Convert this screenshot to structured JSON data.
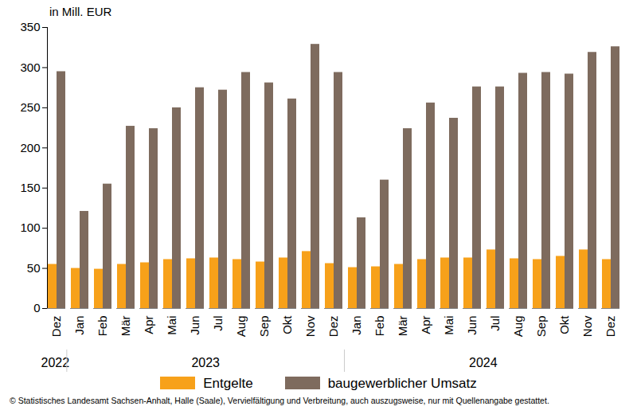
{
  "chart_data": {
    "type": "bar",
    "y_label": "in Mill. EUR",
    "categories": [
      "Dez",
      "Jan",
      "Feb",
      "Mär",
      "Apr",
      "Mai",
      "Jun",
      "Jul",
      "Aug",
      "Sep",
      "Okt",
      "Nov",
      "Dez",
      "Jan",
      "Feb",
      "Mär",
      "Apr",
      "Mai",
      "Jun",
      "Jul",
      "Aug",
      "Sep",
      "Okt",
      "Nov",
      "Dez"
    ],
    "groups": [
      {
        "label": "2022",
        "count": 1
      },
      {
        "label": "2023",
        "count": 12
      },
      {
        "label": "2024",
        "count": 12
      }
    ],
    "series": [
      {
        "name": "Entgelte",
        "color": "#f7a11a",
        "values": [
          55,
          50,
          49,
          55,
          57,
          61,
          62,
          63,
          61,
          58,
          63,
          71,
          56,
          51,
          52,
          55,
          61,
          63,
          63,
          73,
          62,
          61,
          65,
          73,
          61
        ]
      },
      {
        "name": "baugewerblicher Umsatz",
        "color": "#7e6b5e",
        "values": [
          295,
          121,
          155,
          227,
          224,
          250,
          275,
          272,
          294,
          281,
          261,
          329,
          294,
          113,
          160,
          224,
          256,
          237,
          276,
          276,
          293,
          294,
          292,
          319,
          326
        ]
      }
    ],
    "ylim": [
      0,
      350
    ],
    "yticks": [
      0,
      50,
      100,
      150,
      200,
      250,
      300,
      350
    ],
    "grid": false,
    "legend": "bottom",
    "caption": "© Statistisches Landesamt Sachsen-Anhalt, Halle (Saale), Vervielfältigung und Verbreitung, auch auszugsweise, nur mit Quellenangabe gestattet."
  }
}
